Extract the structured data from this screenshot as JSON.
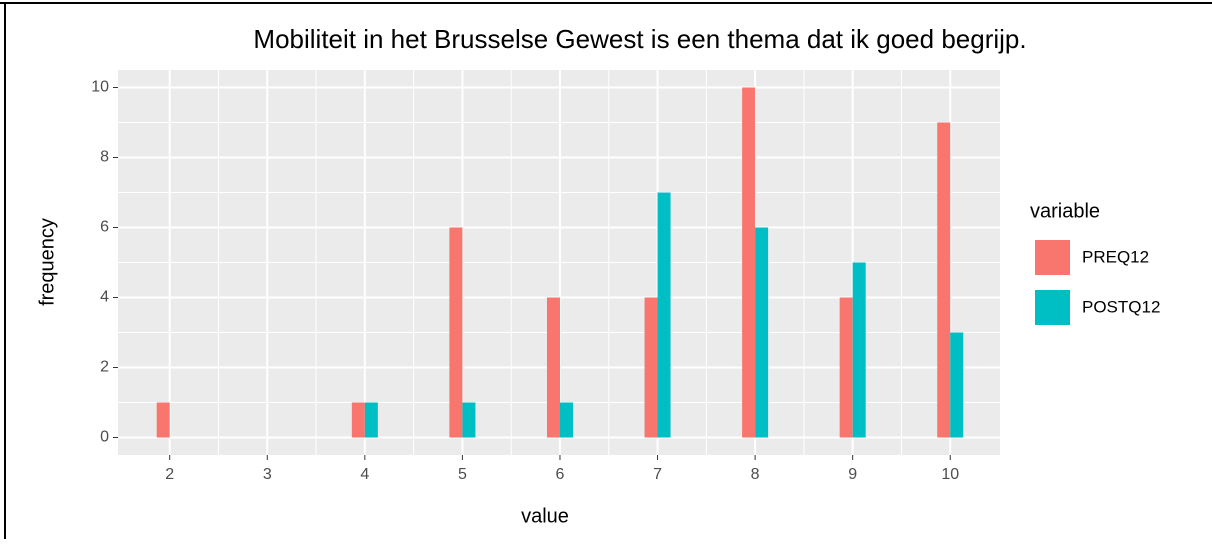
{
  "chart_data": {
    "type": "bar",
    "title": "Mobiliteit in het Brusselse Gewest is een thema dat ik goed begrijp.",
    "x_label": "value",
    "y_label": "frequency",
    "legend_title": "variable",
    "x": [
      2,
      3,
      4,
      5,
      6,
      7,
      8,
      9,
      10
    ],
    "series": [
      {
        "name": "PREQ12",
        "color": "#F8766D",
        "values": [
          1,
          0,
          1,
          6,
          4,
          4,
          10,
          4,
          9
        ]
      },
      {
        "name": "POSTQ12",
        "color": "#00BFC4",
        "values": [
          0,
          0,
          1,
          1,
          1,
          7,
          6,
          5,
          3
        ]
      }
    ],
    "xlim": [
      1.47,
      10.51
    ],
    "xticks": [
      2,
      3,
      4,
      5,
      6,
      7,
      8,
      9,
      10
    ],
    "ylim": [
      -0.5,
      10.5
    ],
    "yticks": [
      0,
      2,
      4,
      6,
      8,
      10
    ],
    "grid": true,
    "legend": "right"
  }
}
